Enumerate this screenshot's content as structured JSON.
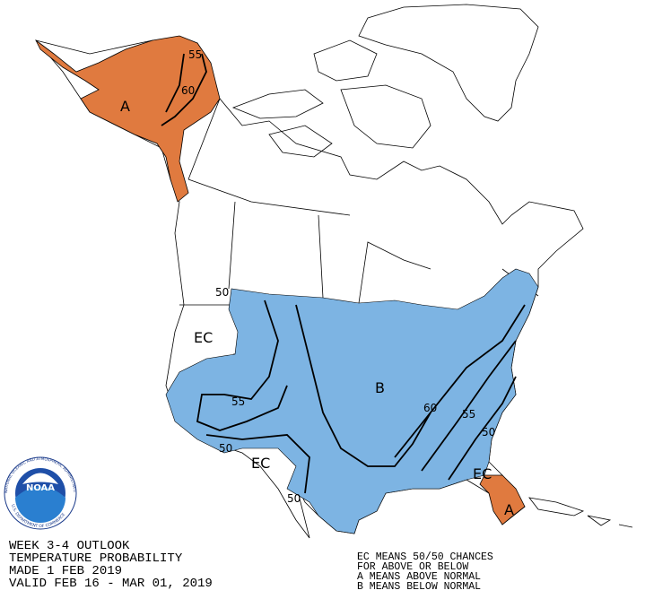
{
  "title": {
    "lines": [
      "WEEK 3-4 OUTLOOK",
      "TEMPERATURE PROBABILITY",
      "MADE  1 FEB 2019",
      "VALID  FEB 16 - MAR 01, 2019"
    ]
  },
  "legend": {
    "lines": [
      "EC MEANS 50/50 CHANCES",
      "FOR ABOVE OR BELOW",
      "A MEANS ABOVE NORMAL",
      "B MEANS BELOW NORMAL"
    ]
  },
  "regions": {
    "alaska": "A",
    "conus": "B",
    "west_coast": "EC",
    "southwest": "EC",
    "southeast": "EC",
    "florida": "A"
  },
  "contours": {
    "alaska_55": "55",
    "alaska_60": "60",
    "west_50": "50",
    "west_55": "55",
    "sw_50": "50",
    "texas_50": "50",
    "east_60": "60",
    "east_55": "55",
    "east_50": "50"
  },
  "logo": {
    "text": "NOAA",
    "ring_top": "NATIONAL OCEANIC AND ATMOSPHERIC ADMINISTRATION",
    "ring_bottom": "U.S. DEPARTMENT OF COMMERCE"
  }
}
